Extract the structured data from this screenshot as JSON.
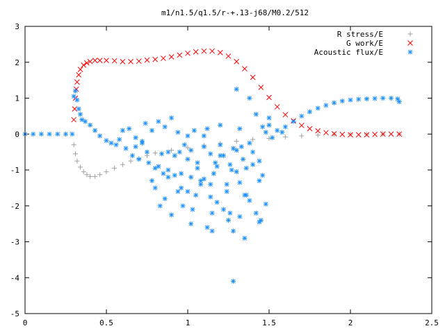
{
  "chart_data": {
    "type": "scatter",
    "title": "m1/n1.5/q1.5/r-+.13-j68/M0.2/512",
    "xlabel": "",
    "ylabel": "",
    "xlim": [
      0,
      2.5
    ],
    "ylim": [
      -5,
      3
    ],
    "x_ticks": [
      "0",
      "0.5",
      "1",
      "1.5",
      "2",
      "2.5"
    ],
    "y_ticks": [
      "3",
      "2",
      "1",
      "0",
      "-1",
      "-2",
      "-3",
      "-4",
      "-5"
    ],
    "grid": false,
    "legend_position": "top-right",
    "series": [
      {
        "name": "R stress/E",
        "marker": "plus",
        "color": "#a0a0a0",
        "x": [
          0.3,
          0.31,
          0.32,
          0.34,
          0.36,
          0.38,
          0.4,
          0.43,
          0.46,
          0.5,
          0.55,
          0.6,
          0.65,
          0.7,
          0.75,
          0.8,
          0.9,
          1.0,
          1.1,
          1.2,
          1.3,
          1.4,
          1.5,
          1.6,
          1.7,
          1.8,
          1.9,
          2.0,
          2.1,
          2.2,
          2.3
        ],
        "y": [
          -0.3,
          -0.55,
          -0.75,
          -0.92,
          -1.05,
          -1.13,
          -1.18,
          -1.18,
          -1.13,
          -1.05,
          -0.95,
          -0.85,
          -0.75,
          -0.68,
          -0.6,
          -0.53,
          -0.45,
          -0.38,
          -0.32,
          -0.26,
          -0.2,
          -0.15,
          -0.12,
          -0.08,
          -0.05,
          -0.03,
          -0.01,
          0.0,
          0.0,
          0.0,
          0.0
        ]
      },
      {
        "name": "G work/E",
        "marker": "cross",
        "color": "#ff0000",
        "x": [
          0.3,
          0.305,
          0.31,
          0.315,
          0.32,
          0.33,
          0.34,
          0.36,
          0.38,
          0.4,
          0.43,
          0.46,
          0.5,
          0.55,
          0.6,
          0.65,
          0.7,
          0.75,
          0.8,
          0.85,
          0.9,
          0.95,
          1.0,
          1.05,
          1.1,
          1.15,
          1.2,
          1.25,
          1.3,
          1.35,
          1.4,
          1.45,
          1.5,
          1.55,
          1.6,
          1.65,
          1.7,
          1.75,
          1.8,
          1.85,
          1.9,
          1.95,
          2.0,
          2.05,
          2.1,
          2.15,
          2.2,
          2.25,
          2.3
        ],
        "y": [
          0.4,
          0.7,
          1.0,
          1.25,
          1.45,
          1.65,
          1.8,
          1.92,
          1.98,
          2.02,
          2.05,
          2.05,
          2.05,
          2.04,
          2.02,
          2.02,
          2.03,
          2.06,
          2.08,
          2.11,
          2.15,
          2.2,
          2.25,
          2.29,
          2.31,
          2.31,
          2.27,
          2.17,
          2.02,
          1.82,
          1.58,
          1.3,
          1.02,
          0.76,
          0.54,
          0.37,
          0.24,
          0.15,
          0.09,
          0.04,
          0.01,
          -0.01,
          -0.02,
          -0.02,
          -0.02,
          -0.01,
          0.0,
          0.0,
          0.0
        ]
      },
      {
        "name": "Acoustic flux/E",
        "marker": "star",
        "color": "#1e90ff",
        "x": [
          0.0,
          0.05,
          0.1,
          0.15,
          0.2,
          0.25,
          0.29,
          0.3,
          0.31,
          0.32,
          0.33,
          0.34,
          0.35,
          0.37,
          0.4,
          0.43,
          0.46,
          0.5,
          0.53,
          0.56,
          0.58,
          0.6,
          0.62,
          0.64,
          0.66,
          0.68,
          0.7,
          0.72,
          0.74,
          0.76,
          0.78,
          0.8,
          0.82,
          0.84,
          0.86,
          0.88,
          0.9,
          0.92,
          0.94,
          0.96,
          0.98,
          1.0,
          1.02,
          1.04,
          1.06,
          1.08,
          1.1,
          1.12,
          1.14,
          1.16,
          1.18,
          1.2,
          1.22,
          1.24,
          1.26,
          1.28,
          1.3,
          1.32,
          1.34,
          1.36,
          1.38,
          1.4,
          1.42,
          1.44,
          1.46,
          1.48,
          1.5,
          1.52,
          1.55,
          1.58,
          1.6,
          1.65,
          1.7,
          1.75,
          1.8,
          1.85,
          1.9,
          1.95,
          2.0,
          2.05,
          2.1,
          2.15,
          2.2,
          2.25,
          2.29,
          2.3,
          0.68,
          0.72,
          0.75,
          0.8,
          0.83,
          0.86,
          0.88,
          0.9,
          0.94,
          0.97,
          1.0,
          1.03,
          1.05,
          1.08,
          1.12,
          1.15,
          1.18,
          1.22,
          1.25,
          1.28,
          1.32,
          1.35,
          1.38,
          1.42,
          1.45,
          1.48,
          0.78,
          0.82,
          0.92,
          0.96,
          1.02,
          1.06,
          1.1,
          1.14,
          1.17,
          1.2,
          1.24,
          1.27,
          1.3,
          1.33,
          1.36,
          1.4,
          1.44,
          1.46,
          1.28,
          1.35,
          1.3,
          1.38,
          1.0,
          1.1,
          1.2,
          0.88,
          1.14,
          0.85,
          1.02,
          1.26,
          1.32,
          1.15,
          1.44,
          1.5,
          0.95
        ],
        "y": [
          0.0,
          0.0,
          0.0,
          0.0,
          0.0,
          0.0,
          0.0,
          1.05,
          1.2,
          0.95,
          0.7,
          0.55,
          0.4,
          0.35,
          0.25,
          0.1,
          -0.05,
          -0.18,
          -0.25,
          -0.3,
          -0.15,
          0.1,
          -0.4,
          0.15,
          -0.6,
          -0.35,
          -0.7,
          -0.2,
          0.3,
          -0.8,
          0.1,
          -0.95,
          0.35,
          -0.55,
          0.2,
          -1.0,
          0.45,
          -0.6,
          0.05,
          -1.1,
          -0.3,
          -0.7,
          -1.2,
          0.1,
          -0.8,
          -1.3,
          -0.35,
          0.15,
          -0.55,
          -1.1,
          -0.9,
          -0.3,
          -0.6,
          -1.4,
          -0.85,
          -0.4,
          -1.05,
          0.15,
          -0.7,
          -0.95,
          -0.25,
          -0.85,
          0.55,
          -1.3,
          0.2,
          0.05,
          0.25,
          -0.1,
          0.1,
          0.05,
          0.2,
          0.35,
          0.5,
          0.62,
          0.72,
          0.8,
          0.87,
          0.92,
          0.95,
          0.97,
          0.98,
          0.99,
          1.0,
          1.0,
          0.98,
          0.9,
          -0.1,
          -0.25,
          -0.5,
          -1.5,
          -2.0,
          -1.8,
          -1.2,
          -2.25,
          -1.6,
          -2.0,
          -1.6,
          -2.1,
          -1.7,
          -1.4,
          -2.6,
          -2.2,
          -1.9,
          -2.1,
          -2.4,
          -2.7,
          -2.3,
          -1.7,
          -1.85,
          -2.2,
          -2.4,
          -1.95,
          -1.3,
          -0.9,
          -1.15,
          -1.5,
          -0.45,
          -0.95,
          -1.25,
          -1.75,
          -0.8,
          -0.6,
          -1.6,
          -1.0,
          -0.45,
          -0.35,
          -1.7,
          -0.5,
          -0.75,
          -1.15,
          -4.1,
          -2.9,
          1.25,
          1.0,
          -0.05,
          -0.05,
          0.25,
          -0.5,
          -1.4,
          -1.1,
          -2.5,
          -2.2,
          -1.35,
          -2.7,
          -2.45,
          0.45,
          -0.5
        ]
      }
    ]
  }
}
